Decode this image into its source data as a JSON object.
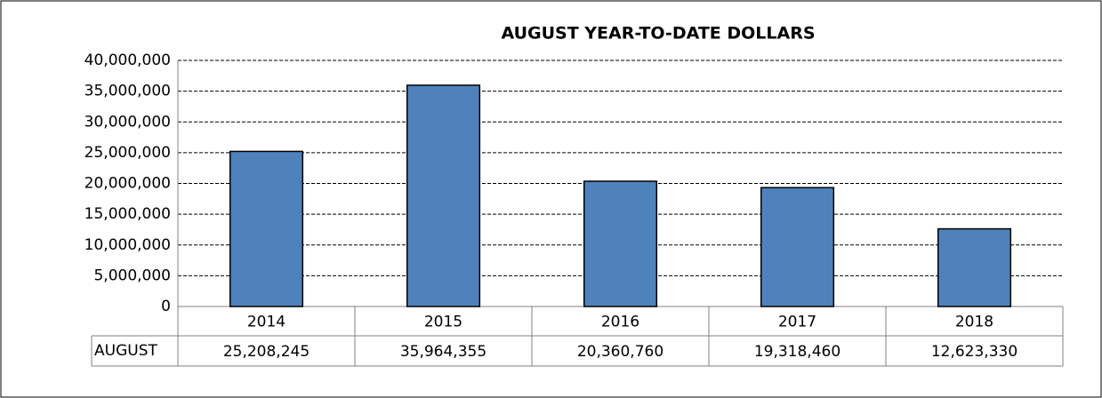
{
  "chart_data": {
    "type": "bar",
    "title": "AUGUST YEAR-TO-DATE DOLLARS",
    "categories": [
      "2014",
      "2015",
      "2016",
      "2017",
      "2018"
    ],
    "series": [
      {
        "name": "AUGUST",
        "color": "#4f81bd",
        "values": [
          25208245,
          35964355,
          20360760,
          19318460,
          12623330
        ],
        "value_labels": [
          "25,208,245",
          "35,964,355",
          "20,360,760",
          "19,318,460",
          "12,623,330"
        ]
      }
    ],
    "ylim": [
      0,
      40000000
    ],
    "yticks": [
      0,
      {
        "value": 5000000,
        "label": "5,000,000"
      },
      {
        "value": 10000000,
        "label": "10,000,000"
      },
      {
        "value": 15000000,
        "label": "15,000,000"
      },
      {
        "value": 20000000,
        "label": "20,000,000"
      },
      {
        "value": 25000000,
        "label": "25,000,000"
      },
      {
        "value": 30000000,
        "label": "30,000,000"
      },
      {
        "value": 35000000,
        "label": "35,000,000"
      },
      {
        "value": 40000000,
        "label": "40,000,000"
      }
    ],
    "grid": true
  }
}
